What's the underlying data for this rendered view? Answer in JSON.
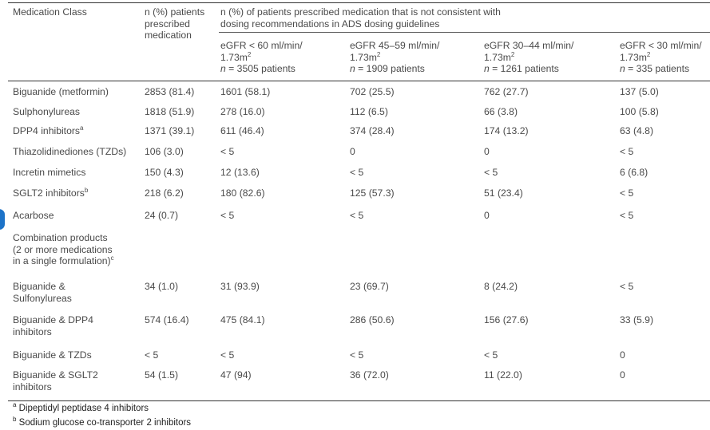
{
  "header": {
    "col_class": "Medication Class",
    "col_prescribed": [
      "n (%) patients",
      "prescribed",
      "medication"
    ],
    "col_inconsistent": [
      "n (%) of patients prescribed medication that is not consistent with",
      "dosing recommendations in ADS dosing guidelines"
    ],
    "subheads": [
      {
        "line1": "eGFR < 60 ml/min/",
        "line2": "1.73m",
        "sup": "2",
        "n_prefix": "n",
        "n_rest": " = 3505 patients"
      },
      {
        "line1": "eGFR 45–59 ml/min/",
        "line2": "1.73m",
        "sup": "2",
        "n_prefix": "n",
        "n_rest": " = 1909 patients"
      },
      {
        "line1": "eGFR 30–44 ml/min/",
        "line2": "1.73m",
        "sup": "2",
        "n_prefix": "n",
        "n_rest": " = 1261 patients"
      },
      {
        "line1": "eGFR < 30 ml/min/",
        "line2": "1.73m",
        "sup": "2",
        "n_prefix": "n",
        "n_rest": " = 335 patients"
      }
    ]
  },
  "rows": [
    {
      "label": [
        "Biguanide (metformin)"
      ],
      "sup": "",
      "values": [
        "2853 (81.4)",
        "1601 (58.1)",
        "702 (25.5)",
        "762 (27.7)",
        "137 (5.0)"
      ]
    },
    {
      "label": [
        "Sulphonylureas"
      ],
      "sup": "",
      "values": [
        "1818 (51.9)",
        "278 (16.0)",
        "112 (6.5)",
        "66 (3.8)",
        "100 (5.8)"
      ]
    },
    {
      "label": [
        "DPP4 inhibitors"
      ],
      "sup": "a",
      "values": [
        "1371 (39.1)",
        "611 (46.4)",
        "374 (28.4)",
        "174 (13.2)",
        "63 (4.8)"
      ]
    },
    {
      "label": [
        "Thiazolidinediones (TZDs)"
      ],
      "sup": "",
      "values": [
        "106 (3.0)",
        "< 5",
        "0",
        "0",
        "< 5"
      ]
    },
    {
      "label": [
        "Incretin mimetics"
      ],
      "sup": "",
      "values": [
        "150 (4.3)",
        "12 (13.6)",
        "< 5",
        "< 5",
        "6 (6.8)"
      ]
    },
    {
      "label": [
        "SGLT2 inhibitors"
      ],
      "sup": "b",
      "values": [
        "218 (6.2)",
        "180 (82.6)",
        "125 (57.3)",
        "51 (23.4)",
        "< 5"
      ]
    },
    {
      "label": [
        "Acarbose"
      ],
      "sup": "",
      "values": [
        "24 (0.7)",
        "< 5",
        "< 5",
        "0",
        "< 5"
      ]
    },
    {
      "label": [
        "Combination products",
        "(2 or more medications",
        "in a single formulation)"
      ],
      "sup": "c",
      "values": [
        "",
        "",
        "",
        "",
        ""
      ]
    },
    {
      "label": [
        "Biguanide &",
        "Sulfonylureas"
      ],
      "sup": "",
      "values": [
        "34 (1.0)",
        "31 (93.9)",
        "23 (69.7)",
        "8 (24.2)",
        "< 5"
      ]
    },
    {
      "label": [
        "Biguanide & DPP4",
        "inhibitors"
      ],
      "sup": "",
      "values": [
        "574 (16.4)",
        "475 (84.1)",
        "286 (50.6)",
        "156 (27.6)",
        "33 (5.9)"
      ]
    },
    {
      "label": [
        "Biguanide & TZDs"
      ],
      "sup": "",
      "values": [
        "< 5",
        "< 5",
        "< 5",
        "< 5",
        "0"
      ]
    },
    {
      "label": [
        "Biguanide & SGLT2",
        "inhibitors"
      ],
      "sup": "",
      "values": [
        "54 (1.5)",
        "47 (94)",
        "36 (72.0)",
        "11 (22.0)",
        "0"
      ]
    }
  ],
  "footnotes": [
    {
      "mark": "a",
      "text": " Dipeptidyl peptidase 4 inhibitors"
    },
    {
      "mark": "b",
      "text": " Sodium glucose co-transporter 2 inhibitors"
    }
  ]
}
